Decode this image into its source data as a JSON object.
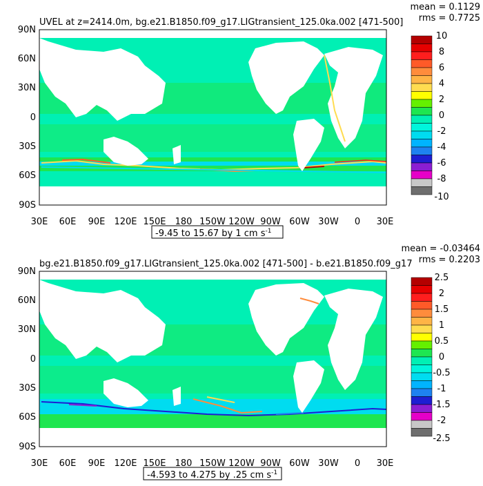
{
  "colors": {
    "palette_top": [
      "#ffffff",
      "#6e6e6e",
      "#c8c8c8",
      "#e600c8",
      "#8c1ed2",
      "#1e1ed2",
      "#1e82f0",
      "#00b4ff",
      "#00dcf0",
      "#00f5dc",
      "#00f0b4",
      "#1ee650",
      "#64f000",
      "#ffff00",
      "#ffdc50",
      "#ffb446",
      "#ff8c3c",
      "#ff5a28",
      "#ff1e1e",
      "#e60000",
      "#b40000"
    ],
    "land": "#ffffff",
    "frame": "#000000"
  },
  "panels": [
    {
      "title": "UVEL at z=2414.0m, bg.e21.B1850.f09_g17.LIGtransient_125.0ka.002 [471-500]",
      "stat_mean": "mean = 0.1129",
      "stat_rms": "rms = 0.7725",
      "range_label": "-9.45 to 15.67 by 1 cm s",
      "range_sup": "-1",
      "lat_labels": [
        "90N",
        "60N",
        "30N",
        "0",
        "30S",
        "60S",
        "90S"
      ],
      "lon_labels": [
        "30E",
        "60E",
        "90E",
        "120E",
        "150E",
        "180",
        "150W",
        "120W",
        "90W",
        "60W",
        "30W",
        "0",
        "30E"
      ],
      "colorbar_labels": [
        "10",
        "8",
        "6",
        "4",
        "2",
        "0",
        "-2",
        "-4",
        "-6",
        "-8",
        "-10"
      ]
    },
    {
      "title": "bg.e21.B1850.f09_g17.LIGtransient_125.0ka.002 [471-500] - b.e21.B1850.f09_g17",
      "stat_mean": "mean = -0.03464",
      "stat_rms": "rms = 0.2203",
      "range_label": "-4.593 to 4.275 by .25 cm s",
      "range_sup": "-1",
      "lat_labels": [
        "90N",
        "60N",
        "30N",
        "0",
        "30S",
        "60S",
        "90S"
      ],
      "lon_labels": [
        "30E",
        "60E",
        "90E",
        "120E",
        "150E",
        "180",
        "150W",
        "120W",
        "90W",
        "60W",
        "30W",
        "0",
        "30E"
      ],
      "colorbar_labels": [
        "2.5",
        "2",
        "1.5",
        "1",
        "0.5",
        "0",
        "-0.5",
        "-1",
        "-1.5",
        "-2",
        "-2.5"
      ]
    }
  ]
}
